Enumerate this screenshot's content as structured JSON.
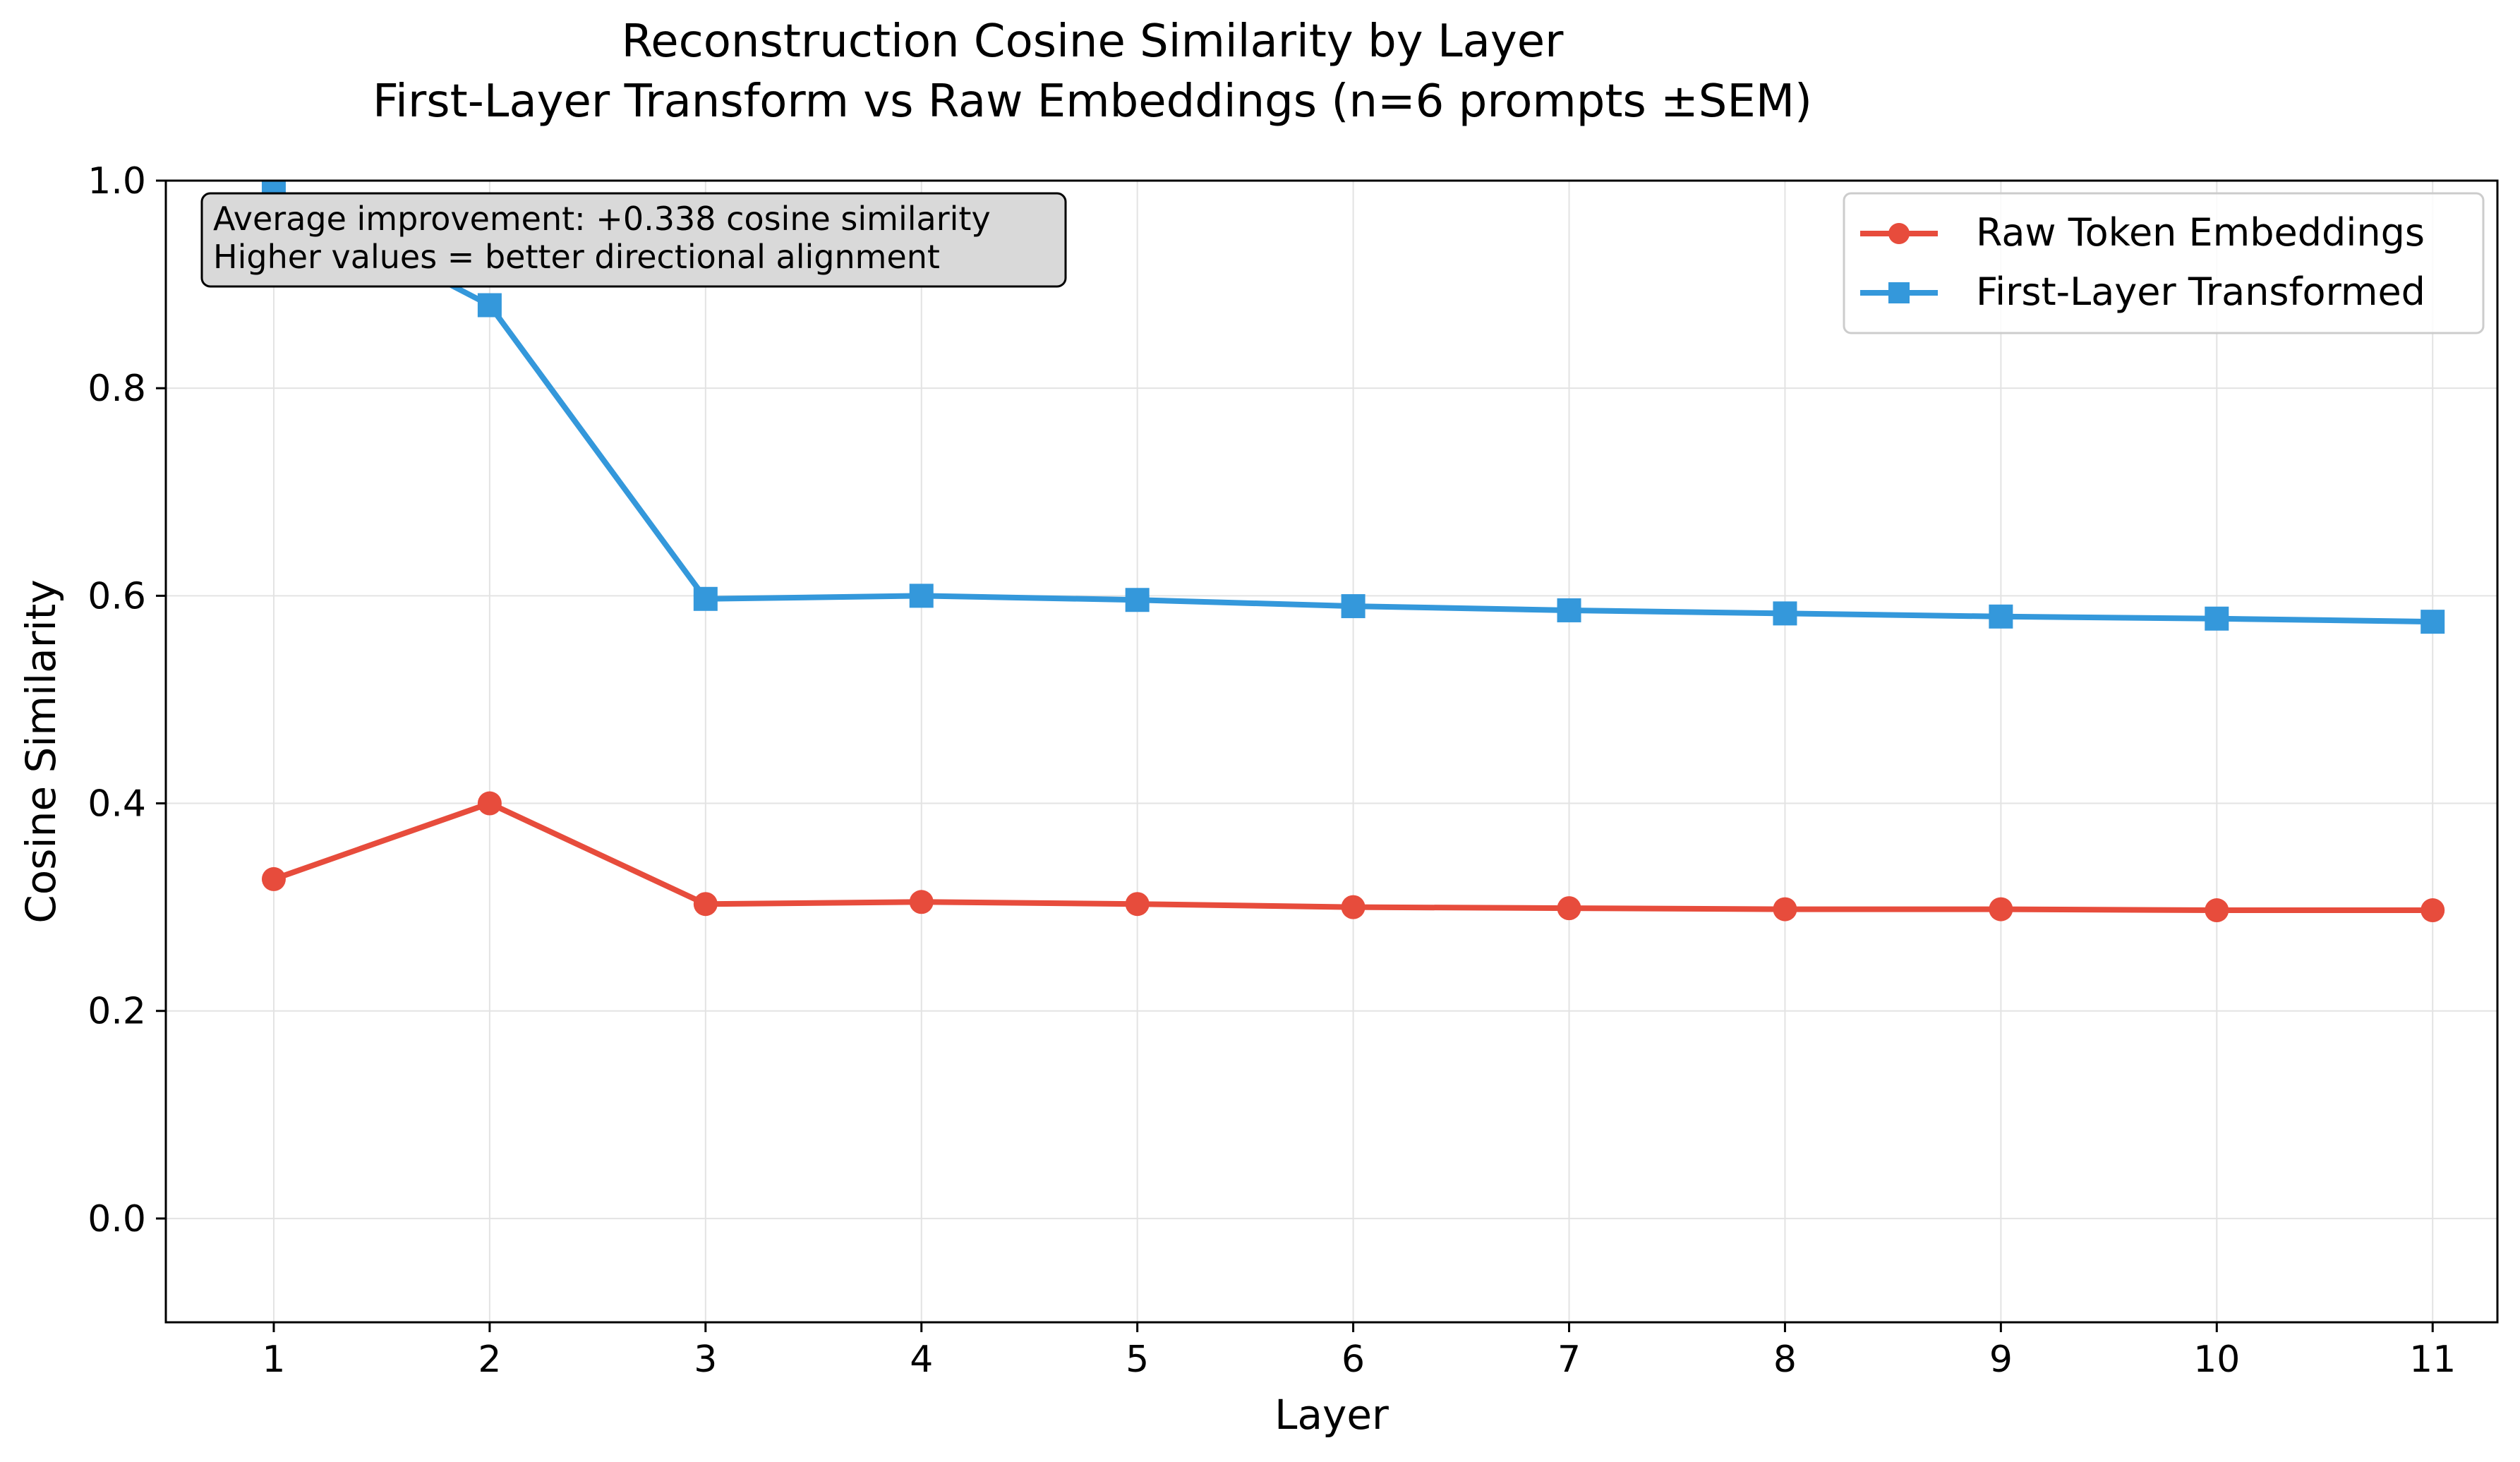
{
  "chart_data": {
    "type": "line",
    "title": "Reconstruction Cosine Similarity by Layer",
    "subtitle": "First-Layer Transform vs Raw Embeddings (n=6 prompts ±SEM)",
    "xlabel": "Layer",
    "ylabel": "Cosine Similarity",
    "x": [
      1,
      2,
      3,
      4,
      5,
      6,
      7,
      8,
      9,
      10,
      11
    ],
    "x_tick_labels": [
      "1",
      "2",
      "3",
      "4",
      "5",
      "6",
      "7",
      "8",
      "9",
      "10",
      "11"
    ],
    "y_ticks": [
      0.0,
      0.2,
      0.4,
      0.6,
      0.8,
      1.0
    ],
    "y_tick_labels": [
      "0.0",
      "0.2",
      "0.4",
      "0.6",
      "0.8",
      "1.0"
    ],
    "xlim": [
      0.5,
      11.3
    ],
    "ylim": [
      -0.1,
      1.0
    ],
    "grid": true,
    "legend_position": "top-right",
    "series": [
      {
        "name": "Raw Token Embeddings",
        "color": "#e74c3c",
        "marker": "circle",
        "values": [
          0.327,
          0.4,
          0.303,
          0.305,
          0.303,
          0.3,
          0.299,
          0.298,
          0.298,
          0.297,
          0.297
        ]
      },
      {
        "name": "First-Layer Transformed",
        "color": "#3498db",
        "marker": "square",
        "values": [
          0.988,
          0.88,
          0.597,
          0.6,
          0.596,
          0.59,
          0.586,
          0.583,
          0.58,
          0.578,
          0.575
        ]
      }
    ],
    "annotation": {
      "lines": [
        "Average improvement: +0.338 cosine similarity",
        "Higher values = better directional alignment"
      ]
    }
  }
}
